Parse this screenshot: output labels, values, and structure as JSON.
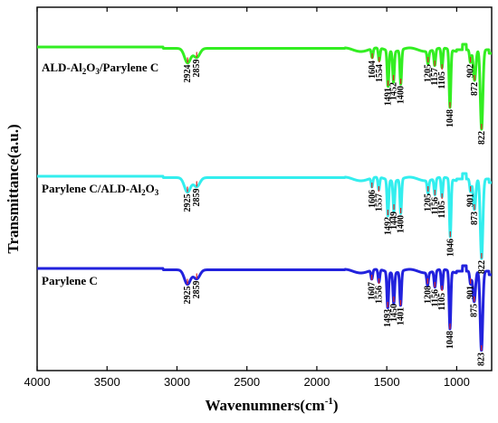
{
  "chart_data": {
    "type": "line",
    "xlabel": "Wavenumners(cm",
    "xlabel_sup": "-1",
    "xlabel_end": ")",
    "ylabel": "Transmittance(a.u.)",
    "xlim": [
      4000,
      750
    ],
    "x_reversed": true,
    "xticks": [
      "4000",
      "3500",
      "3000",
      "2500",
      "2000",
      "1500",
      "1000"
    ],
    "xtick_values": [
      4000,
      3500,
      3000,
      2500,
      2000,
      1500,
      1000
    ],
    "y_ticks_shown": false,
    "series": [
      {
        "label_parts": [
          "ALD-Al",
          "2",
          "O",
          "3",
          "/Parylene C"
        ],
        "color": "#33ee22",
        "peaks": [
          {
            "x": 2924,
            "label": "2924"
          },
          {
            "x": 2859,
            "label": "2859"
          },
          {
            "x": 1604,
            "label": "1604"
          },
          {
            "x": 1554,
            "label": "1554"
          },
          {
            "x": 1491,
            "label": "1491"
          },
          {
            "x": 1452,
            "label": "1452"
          },
          {
            "x": 1400,
            "label": "1400"
          },
          {
            "x": 1205,
            "label": "1205"
          },
          {
            "x": 1157,
            "label": "1157"
          },
          {
            "x": 1105,
            "label": "1105"
          },
          {
            "x": 1048,
            "label": "1048"
          },
          {
            "x": 902,
            "label": "902"
          },
          {
            "x": 872,
            "label": "872"
          },
          {
            "x": 822,
            "label": "822"
          }
        ]
      },
      {
        "label_parts": [
          "Parylene C/ALD-Al",
          "2",
          "O",
          "3",
          ""
        ],
        "color": "#33eeee",
        "peaks": [
          {
            "x": 2925,
            "label": "2925"
          },
          {
            "x": 2859,
            "label": "2859"
          },
          {
            "x": 1606,
            "label": "1606"
          },
          {
            "x": 1557,
            "label": "1557"
          },
          {
            "x": 1492,
            "label": "1492"
          },
          {
            "x": 1449,
            "label": "1449"
          },
          {
            "x": 1400,
            "label": "1400"
          },
          {
            "x": 1205,
            "label": "1205"
          },
          {
            "x": 1156,
            "label": "1156"
          },
          {
            "x": 1105,
            "label": "1105"
          },
          {
            "x": 1046,
            "label": "1046"
          },
          {
            "x": 901,
            "label": "901"
          },
          {
            "x": 873,
            "label": "873"
          },
          {
            "x": 822,
            "label": "822"
          }
        ]
      },
      {
        "label_parts": [
          "Parylene C",
          "",
          "",
          "",
          ""
        ],
        "color": "#2222dd",
        "peaks": [
          {
            "x": 2925,
            "label": "2925"
          },
          {
            "x": 2859,
            "label": "2859"
          },
          {
            "x": 1607,
            "label": "1607"
          },
          {
            "x": 1556,
            "label": "1556"
          },
          {
            "x": 1493,
            "label": "1493"
          },
          {
            "x": 1450,
            "label": "1450"
          },
          {
            "x": 1401,
            "label": "1401"
          },
          {
            "x": 1208,
            "label": "1208"
          },
          {
            "x": 1156,
            "label": "1156"
          },
          {
            "x": 1105,
            "label": "1105"
          },
          {
            "x": 1048,
            "label": "1048"
          },
          {
            "x": 901,
            "label": "901"
          },
          {
            "x": 875,
            "label": "875"
          },
          {
            "x": 823,
            "label": "823"
          }
        ]
      }
    ]
  }
}
